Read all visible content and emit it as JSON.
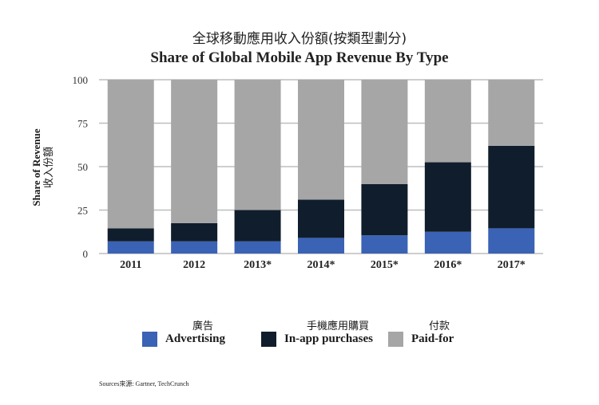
{
  "title_zh": "全球移動應用收入份額(按類型劃分)",
  "title_en": "Share of Global Mobile App Revenue By Type",
  "ylabel_zh": "收入份額",
  "ylabel_en": "Share of Revenue",
  "source": "Sources來源: Gartner, TechCrunch",
  "legend": [
    {
      "label_zh": "廣告",
      "label_en": "Advertising",
      "color": "#3a62b5"
    },
    {
      "label_zh": "手機應用購買",
      "label_en": "In-app purchases",
      "color": "#101d2c"
    },
    {
      "label_zh": "付款",
      "label_en": "Paid-for",
      "color": "#a6a6a6"
    }
  ],
  "chart_data": {
    "type": "bar",
    "stacked": true,
    "categories": [
      "2011",
      "2012",
      "2013*",
      "2014*",
      "2015*",
      "2016*",
      "2017*"
    ],
    "series": [
      {
        "name": "Advertising",
        "values": [
          7,
          7,
          7,
          9,
          10.5,
          12.5,
          14.5
        ]
      },
      {
        "name": "In-app purchases",
        "values": [
          7.5,
          10.5,
          18,
          22,
          29.5,
          40,
          47.5
        ]
      },
      {
        "name": "Paid-for",
        "values": [
          85.5,
          82.5,
          75,
          69,
          60,
          47.5,
          38
        ]
      }
    ],
    "ylim": [
      0,
      100
    ],
    "yticks": [
      0,
      25,
      50,
      75,
      100
    ],
    "grid": true
  }
}
